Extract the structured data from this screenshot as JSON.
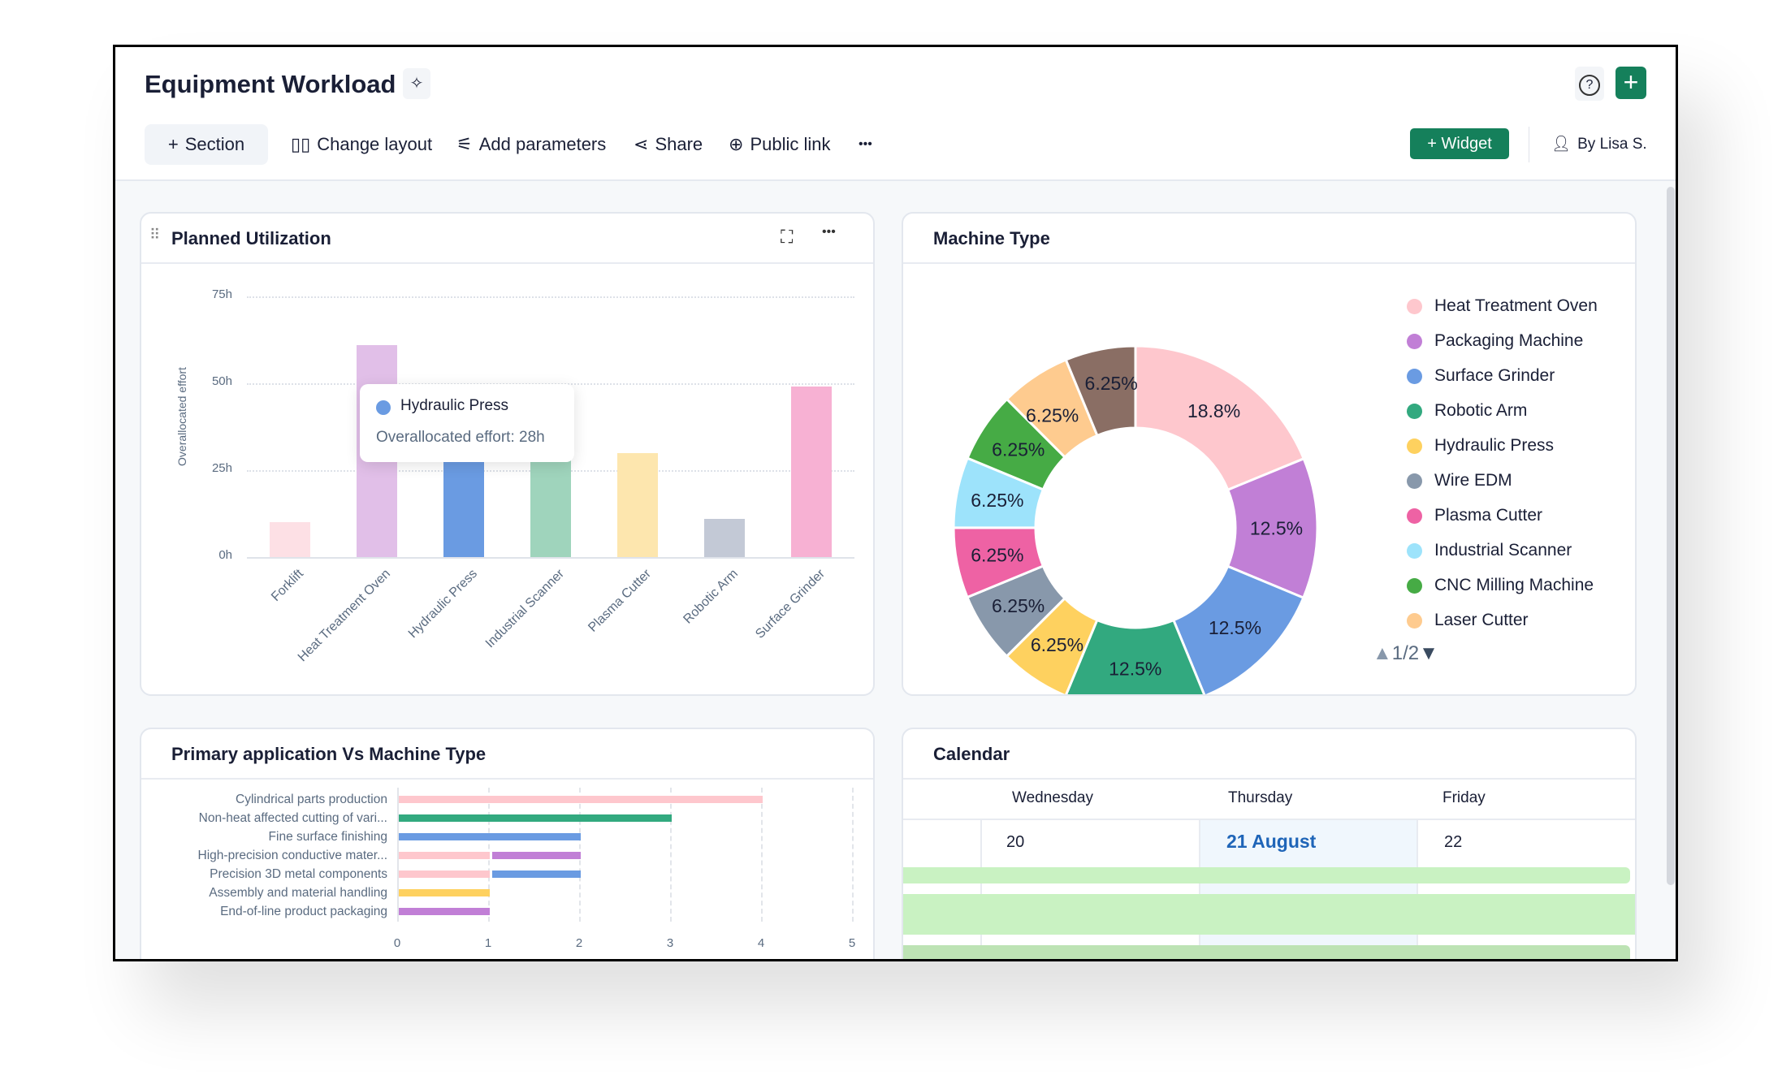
{
  "header": {
    "title": "Equipment Workload",
    "pin_icon": "pin-icon",
    "help_icon": "help-icon",
    "add_icon": "plus-icon"
  },
  "toolbar": {
    "section": "Section",
    "change_layout": "Change layout",
    "add_parameters": "Add parameters",
    "share": "Share",
    "public_link": "Public link",
    "more": "•••",
    "widget": "Widget",
    "author": "By Lisa S."
  },
  "colors": {
    "accent": "#15805b"
  },
  "planned": {
    "title": "Planned Utilization",
    "tooltip": {
      "name": "Hydraulic Press",
      "text": "Overallocated effort: 28h",
      "color": "#6a9be2"
    }
  },
  "machine": {
    "title": "Machine Type",
    "pager": "1/2"
  },
  "primary": {
    "title": "Primary application Vs Machine Type"
  },
  "calendar": {
    "title": "Calendar",
    "days": [
      "Wednesday",
      "Thursday",
      "Friday"
    ],
    "dates": [
      "20",
      "21 August",
      "22"
    ]
  },
  "chart_data": [
    {
      "type": "bar",
      "ylabel": "Overallocated effort",
      "ylim": [
        0,
        75
      ],
      "yticks": [
        "0h",
        "25h",
        "50h",
        "75h"
      ],
      "grid": true,
      "categories": [
        "Forklift",
        "Heat Treatment Oven",
        "Hydraulic Press",
        "Industrial Scanner",
        "Plasma Cutter",
        "Robotic Arm",
        "Surface Grinder"
      ],
      "values": [
        10,
        61,
        28,
        29,
        30,
        11,
        49
      ],
      "colors": [
        "#fde0e5",
        "#e1bfe8",
        "#6a9be2",
        "#9fd4bc",
        "#fde6ae",
        "#c3c9d6",
        "#f7b1d3"
      ]
    },
    {
      "type": "pie",
      "donut": true,
      "slices": [
        {
          "label": "Heat Treatment Oven",
          "value": 18.8,
          "text": "18.8%",
          "color": "#fec7cd"
        },
        {
          "label": "Packaging Machine",
          "value": 12.5,
          "text": "12.5%",
          "color": "#c17fd6"
        },
        {
          "label": "Surface Grinder",
          "value": 12.5,
          "text": "12.5%",
          "color": "#6a9be2"
        },
        {
          "label": "Robotic Arm",
          "value": 12.5,
          "text": "12.5%",
          "color": "#32a97f"
        },
        {
          "label": "Hydraulic Press",
          "value": 6.25,
          "text": "6.25%",
          "color": "#fed15f"
        },
        {
          "label": "Wire EDM",
          "value": 6.25,
          "text": "6.25%",
          "color": "#8898ab"
        },
        {
          "label": "Plasma Cutter",
          "value": 6.25,
          "text": "6.25%",
          "color": "#ee62a4"
        },
        {
          "label": "Industrial Scanner",
          "value": 6.25,
          "text": "6.25%",
          "color": "#9de3fb"
        },
        {
          "label": "CNC Milling Machine",
          "value": 6.25,
          "text": "6.25%",
          "color": "#46ab45"
        },
        {
          "label": "Laser Cutter",
          "value": 6.25,
          "text": "6.25%",
          "color": "#fecb8f"
        },
        {
          "label": "",
          "value": 6.25,
          "text": "6.25%",
          "color": "#8a6e64"
        }
      ],
      "legend": "right"
    },
    {
      "type": "bar",
      "orientation": "horizontal",
      "xlim": [
        0,
        5
      ],
      "xticks": [
        "0",
        "1",
        "2",
        "3",
        "4",
        "5"
      ],
      "grid": true,
      "categories": [
        "Cylindrical parts production",
        "Non-heat affected cutting of vari...",
        "Fine surface finishing",
        "High-precision conductive mater...",
        "Precision 3D metal components",
        "Assembly and material handling",
        "End-of-line product packaging"
      ],
      "segments": [
        [
          {
            "value": 4,
            "color": "#fec7cd"
          }
        ],
        [
          {
            "value": 3,
            "color": "#32a97f"
          }
        ],
        [
          {
            "value": 2,
            "color": "#6a9be2"
          }
        ],
        [
          {
            "value": 1,
            "color": "#fec7cd"
          },
          {
            "value": 1,
            "color": "#c17fd6"
          }
        ],
        [
          {
            "value": 1,
            "color": "#fec7cd"
          },
          {
            "value": 1,
            "color": "#6a9be2"
          }
        ],
        [
          {
            "value": 1,
            "color": "#fed15f"
          }
        ],
        [
          {
            "value": 1,
            "color": "#c17fd6"
          }
        ]
      ]
    }
  ]
}
